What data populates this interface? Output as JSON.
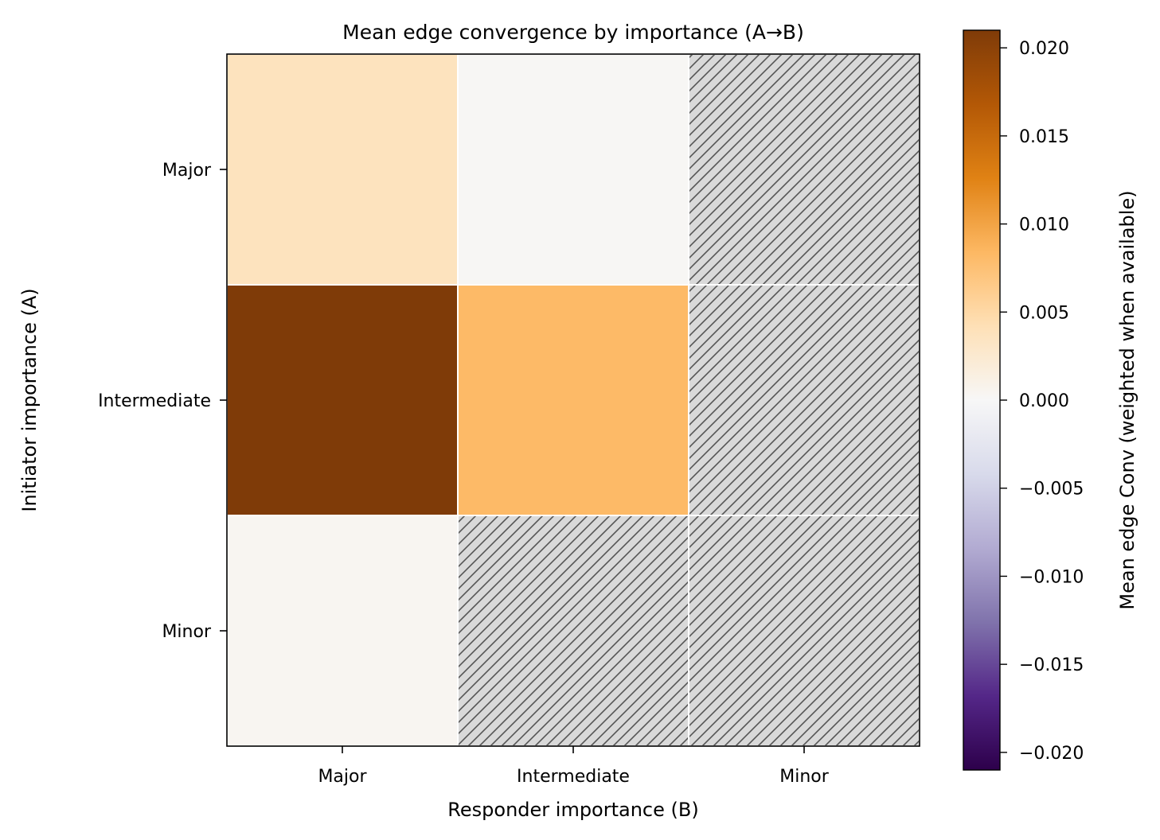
{
  "chart_data": {
    "type": "heatmap",
    "title": "Mean edge convergence by importance (A→B)",
    "xlabel": "Responder importance (B)",
    "ylabel": "Initiator importance (A)",
    "x_categories": [
      "Major",
      "Intermediate",
      "Minor"
    ],
    "y_categories": [
      "Major",
      "Intermediate",
      "Minor"
    ],
    "values": [
      [
        0.0037,
        0.0002,
        null
      ],
      [
        0.021,
        0.0082,
        null
      ],
      [
        0.0004,
        null,
        null
      ]
    ],
    "missing_style": "hatched gray",
    "colorbar": {
      "label": "Mean edge Conv (weighted when available)",
      "min": -0.021,
      "max": 0.021,
      "ticks": [
        0.02,
        0.015,
        0.01,
        0.005,
        0.0,
        -0.005,
        -0.01,
        -0.015,
        -0.02
      ],
      "tick_labels": [
        "0.020",
        "0.015",
        "0.010",
        "0.005",
        "0.000",
        "−0.005",
        "−0.010",
        "−0.015",
        "−0.020"
      ],
      "colormap": "PuOr_r",
      "colors": {
        "negative_end": "#2d004b",
        "center": "#f7f7f7",
        "positive_end": "#7f3b08"
      }
    },
    "legend": "none"
  }
}
